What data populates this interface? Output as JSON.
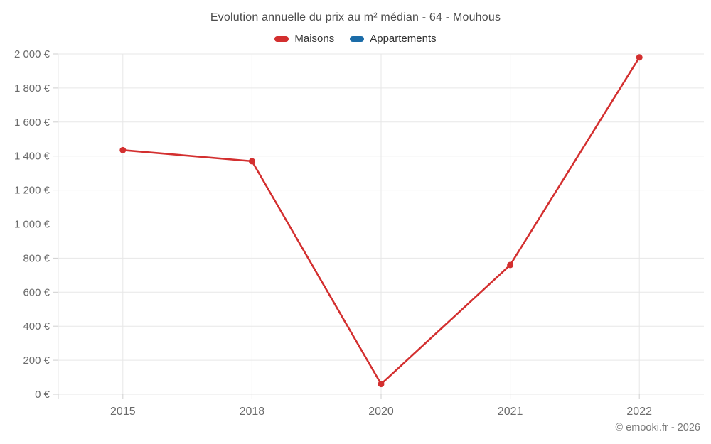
{
  "header": {
    "title": "Evolution annuelle du prix au m² médian - 64 - Mouhous"
  },
  "legend": {
    "items": [
      {
        "label": "Maisons",
        "color": "#d32f2f"
      },
      {
        "label": "Appartements",
        "color": "#1b6ca8"
      }
    ]
  },
  "footer": {
    "credit": "© emooki.fr - 2026"
  },
  "colors": {
    "background": "#ffffff",
    "grid": "#e7e7e7",
    "tick": "#cfcfcf",
    "axis_label": "#6b6b6b",
    "title_text": "#4c4c4c",
    "legend_text": "#333333",
    "footer_text": "#7a7a7a",
    "maisons_red": "#d32f2f",
    "appartements_blue": "#1b6ca8"
  },
  "chart_data": {
    "type": "line",
    "title": "Evolution annuelle du prix au m² médian - 64 - Mouhous",
    "xlabel": "",
    "ylabel": "",
    "categories": [
      "2015",
      "2018",
      "2020",
      "2021",
      "2022"
    ],
    "series": [
      {
        "name": "Maisons",
        "color": "#d32f2f",
        "values": [
          1435,
          1370,
          60,
          760,
          1980
        ]
      },
      {
        "name": "Appartements",
        "color": "#1b6ca8",
        "values": []
      }
    ],
    "ylim": [
      0,
      2000
    ],
    "y_ticks": [
      0,
      200,
      400,
      600,
      800,
      1000,
      1200,
      1400,
      1600,
      1800,
      2000
    ],
    "y_tick_labels": [
      "0 €",
      "200 €",
      "400 €",
      "600 €",
      "800 €",
      "1 000 €",
      "1 200 €",
      "1 400 €",
      "1 600 €",
      "1 800 €",
      "2 000 €"
    ],
    "grid": true,
    "legend_position": "top",
    "currency_suffix": "€"
  }
}
